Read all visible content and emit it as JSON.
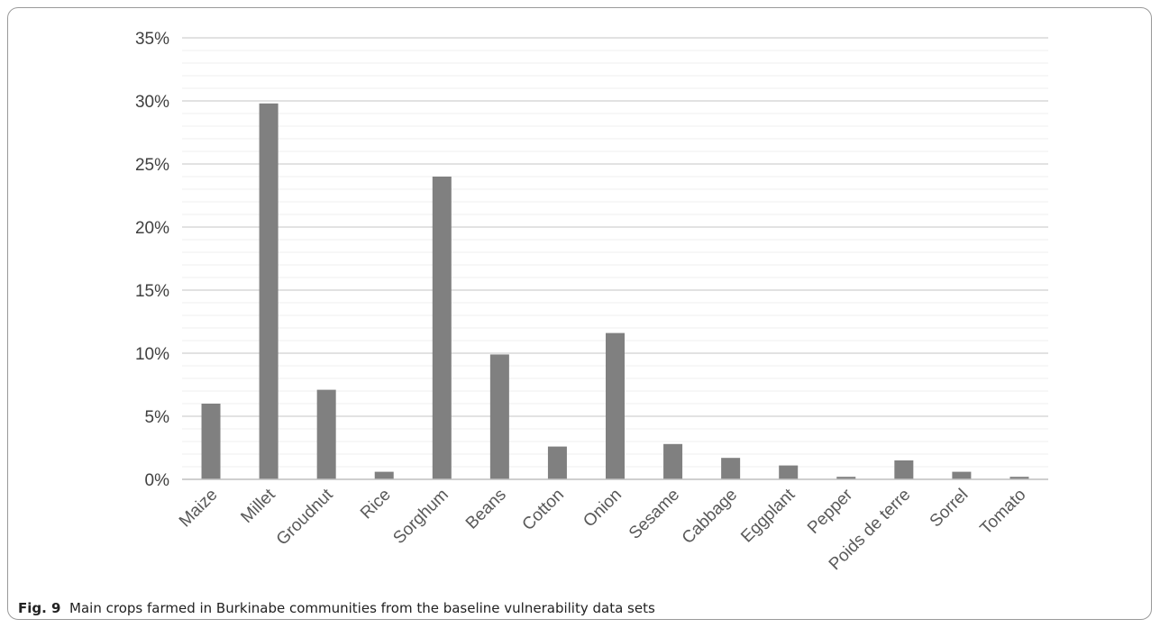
{
  "caption": {
    "label": "Fig. 9",
    "text": "Main crops farmed in Burkinabe communities from the baseline vulnerability data sets"
  },
  "chart_data": {
    "type": "bar",
    "categories": [
      "Maize",
      "Millet",
      "Groudnut",
      "Rice",
      "Sorghum",
      "Beans",
      "Cotton",
      "Onion",
      "Sesame",
      "Cabbage",
      "Eggplant",
      "Pepper",
      "Poids de terre",
      "Sorrel",
      "Tomato"
    ],
    "values": [
      6.0,
      29.8,
      7.1,
      0.6,
      24.0,
      9.9,
      2.6,
      11.6,
      2.8,
      1.7,
      1.1,
      0.2,
      1.5,
      0.6,
      0.2
    ],
    "yticks": [
      "0%",
      "5%",
      "10%",
      "15%",
      "20%",
      "25%",
      "30%",
      "35%"
    ],
    "ylim": [
      0,
      35
    ],
    "grid": true,
    "bar_color": "#808080",
    "grid_color": "#d9d9d9",
    "minor_grid_color": "#efefef"
  }
}
